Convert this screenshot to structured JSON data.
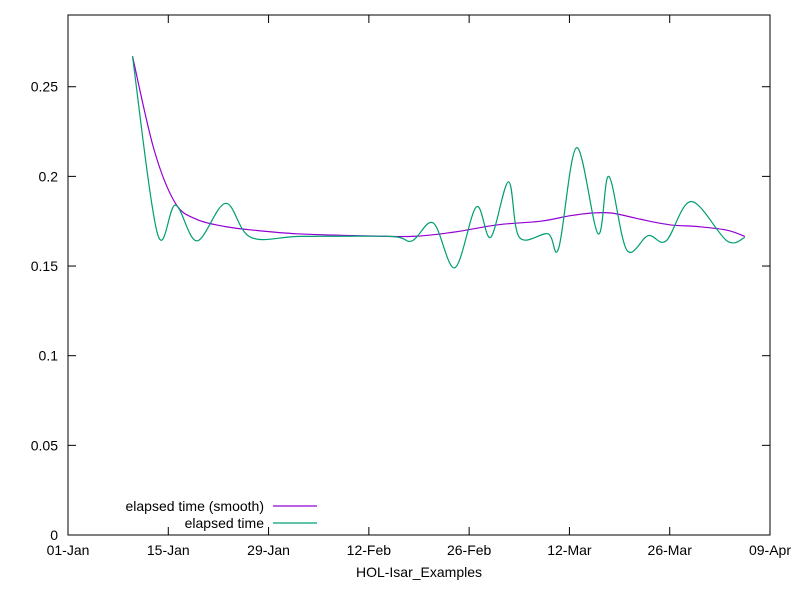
{
  "chart_data": {
    "type": "line",
    "title": "",
    "xlabel": "HOL-Isar_Examples",
    "ylabel": "",
    "x_units": "days since 01-Jan",
    "xlim": [
      0,
      98
    ],
    "ylim": [
      0,
      0.29
    ],
    "x_ticks": [
      {
        "value": 0,
        "label": "01-Jan"
      },
      {
        "value": 14,
        "label": "15-Jan"
      },
      {
        "value": 28,
        "label": "29-Jan"
      },
      {
        "value": 42,
        "label": "12-Feb"
      },
      {
        "value": 56,
        "label": "26-Feb"
      },
      {
        "value": 70,
        "label": "12-Mar"
      },
      {
        "value": 84,
        "label": "26-Mar"
      },
      {
        "value": 98,
        "label": "09-Apr"
      }
    ],
    "y_ticks": [
      {
        "value": 0,
        "label": "0"
      },
      {
        "value": 0.05,
        "label": "0.05"
      },
      {
        "value": 0.1,
        "label": "0.1"
      },
      {
        "value": 0.15,
        "label": "0.15"
      },
      {
        "value": 0.2,
        "label": "0.2"
      },
      {
        "value": 0.25,
        "label": "0.25"
      }
    ],
    "legend_position": "bottom-left",
    "series": [
      {
        "name": "elapsed time (smooth)",
        "color": "#9400d3",
        "x": [
          9,
          12,
          15,
          18,
          22,
          26,
          32,
          40,
          48,
          54,
          60,
          66,
          70,
          73,
          76,
          80,
          84,
          88,
          92,
          94.5
        ],
        "y": [
          0.267,
          0.215,
          0.185,
          0.176,
          0.172,
          0.17,
          0.168,
          0.167,
          0.1665,
          0.169,
          0.173,
          0.175,
          0.178,
          0.1795,
          0.1795,
          0.176,
          0.173,
          0.172,
          0.17,
          0.1665
        ]
      },
      {
        "name": "elapsed time",
        "color": "#009e73",
        "x": [
          9,
          12.5,
          15,
          18,
          22,
          25.5,
          32.5,
          45,
          48,
          51,
          54,
          57,
          59,
          61.5,
          63,
          67,
          68.5,
          71,
          74,
          75.5,
          78,
          81,
          83.5,
          87,
          92,
          94.5
        ],
        "y": [
          0.267,
          0.168,
          0.184,
          0.164,
          0.185,
          0.166,
          0.1665,
          0.1665,
          0.164,
          0.174,
          0.149,
          0.183,
          0.166,
          0.197,
          0.166,
          0.168,
          0.16,
          0.216,
          0.168,
          0.2,
          0.159,
          0.167,
          0.164,
          0.186,
          0.164,
          0.166
        ]
      }
    ]
  }
}
